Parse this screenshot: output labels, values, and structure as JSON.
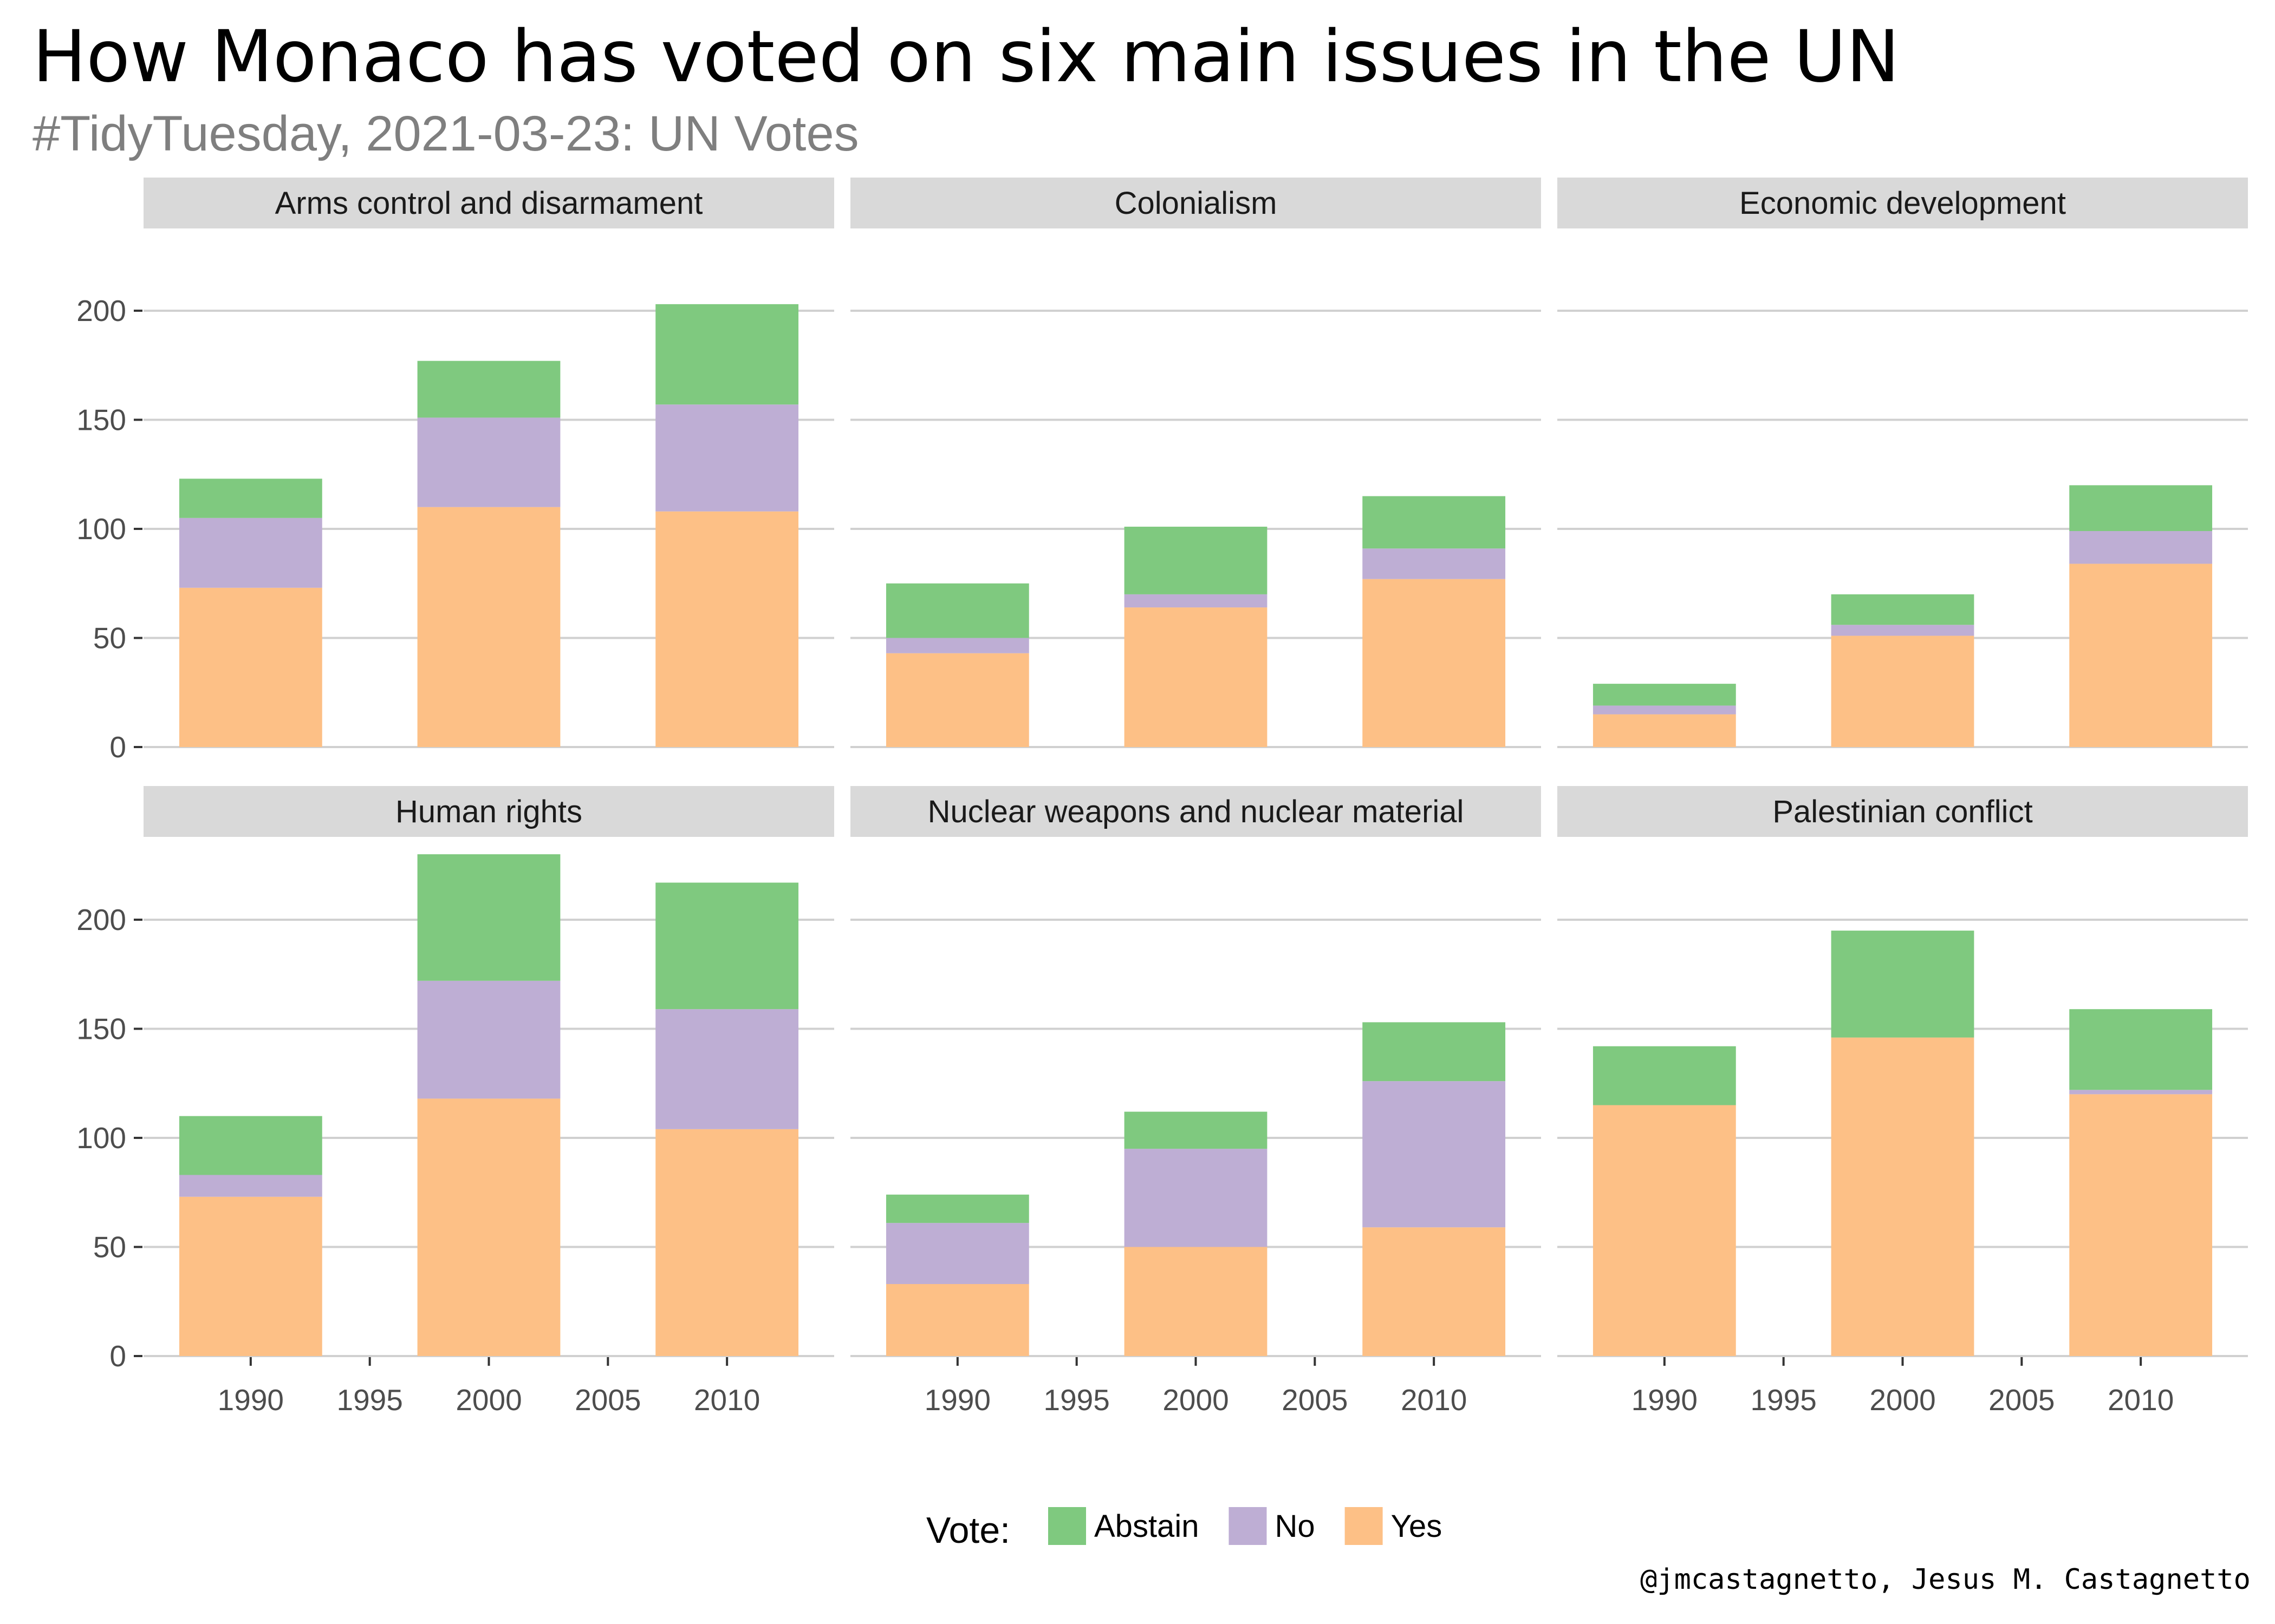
{
  "title": "How Monaco has voted on six main issues in the UN",
  "subtitle": "#TidyTuesday, 2021-03-23: UN Votes",
  "caption": "@jmcastagnetto, Jesus M. Castagnetto",
  "legend": {
    "title": "Vote:",
    "items": [
      {
        "label": "Abstain",
        "color": "#7fc97f"
      },
      {
        "label": "No",
        "color": "#beaed4"
      },
      {
        "label": "Yes",
        "color": "#fdc086"
      }
    ]
  },
  "chart_data": {
    "type": "bar",
    "stacked": true,
    "x": [
      1990,
      2000,
      2010
    ],
    "x_ticks": [
      "1990",
      "1995",
      "2000",
      "2005",
      "2010"
    ],
    "y_ticks": [
      "0",
      "50",
      "100",
      "150",
      "200"
    ],
    "ylim": [
      0,
      232
    ],
    "grid": true,
    "legend_position": "bottom",
    "stack_order": [
      "Yes",
      "No",
      "Abstain"
    ],
    "panels": [
      {
        "name": "Arms control and disarmament",
        "yes": [
          73,
          110,
          108
        ],
        "no": [
          32,
          41,
          49
        ],
        "abstain": [
          18,
          26,
          46
        ]
      },
      {
        "name": "Colonialism",
        "yes": [
          43,
          64,
          77
        ],
        "no": [
          7,
          6,
          14
        ],
        "abstain": [
          25,
          31,
          24
        ]
      },
      {
        "name": "Economic development",
        "yes": [
          15,
          51,
          84
        ],
        "no": [
          4,
          5,
          15
        ],
        "abstain": [
          10,
          14,
          21
        ]
      },
      {
        "name": "Human rights",
        "yes": [
          73,
          118,
          104
        ],
        "no": [
          10,
          54,
          55
        ],
        "abstain": [
          27,
          58,
          58
        ]
      },
      {
        "name": "Nuclear weapons and nuclear material",
        "yes": [
          33,
          50,
          59
        ],
        "no": [
          28,
          45,
          67
        ],
        "abstain": [
          13,
          17,
          27
        ]
      },
      {
        "name": "Palestinian conflict",
        "yes": [
          115,
          146,
          120
        ],
        "no": [
          0,
          0,
          2
        ],
        "abstain": [
          27,
          49,
          37
        ]
      }
    ]
  }
}
